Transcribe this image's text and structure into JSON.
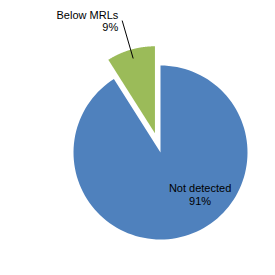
{
  "chart_data": {
    "type": "pie",
    "categories": [
      "Not detected",
      "Below MRLs"
    ],
    "values": [
      91,
      9
    ],
    "value_labels": [
      "91%",
      "9%"
    ],
    "colors": [
      "#4F81BD",
      "#9BBB59"
    ],
    "data_labels": true
  }
}
